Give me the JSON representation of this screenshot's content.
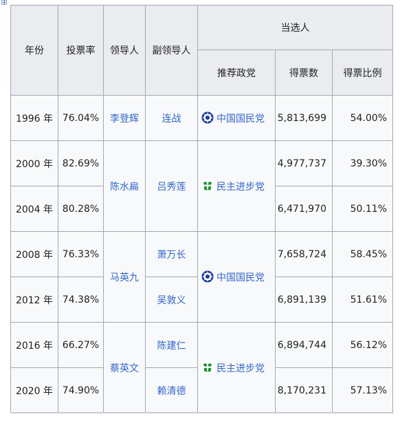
{
  "header": {
    "year": "年份",
    "turnout": "投票率",
    "leader": "领导人",
    "deputy": "副领导人",
    "elected": "当选人",
    "party": "推荐政党",
    "votes": "得票数",
    "share": "得票比例"
  },
  "rows": [
    {
      "year": "1996 年",
      "turnout": "76.04%",
      "votes": "5,813,699",
      "share": "54.00%"
    },
    {
      "year": "2000 年",
      "turnout": "82.69%",
      "votes": "4,977,737",
      "share": "39.30%"
    },
    {
      "year": "2004 年",
      "turnout": "80.28%",
      "votes": "6,471,970",
      "share": "50.11%"
    },
    {
      "year": "2008 年",
      "turnout": "76.33%",
      "votes": "7,658,724",
      "share": "58.45%"
    },
    {
      "year": "2012 年",
      "turnout": "74.38%",
      "votes": "6,891,139",
      "share": "51.61%"
    },
    {
      "year": "2016 年",
      "turnout": "66.27%",
      "votes": "6,894,744",
      "share": "56.12%"
    },
    {
      "year": "2020 年",
      "turnout": "74.90%",
      "votes": "8,170,231",
      "share": "57.13%"
    }
  ],
  "leaders": [
    "李登辉",
    "陈水扁",
    "马英九",
    "蔡英文"
  ],
  "deputies": [
    "连战",
    "吕秀莲",
    "萧万长",
    "吴敦义",
    "陈建仁",
    "赖清德"
  ],
  "parties": {
    "kmt": {
      "name": "中国国民党",
      "icon": "kmt-emblem-icon",
      "color": "#1a3b9e"
    },
    "dpp": {
      "name": "民主进步党",
      "icon": "dpp-emblem-icon",
      "color": "#1b9431"
    }
  },
  "link_color": "#3366cc"
}
